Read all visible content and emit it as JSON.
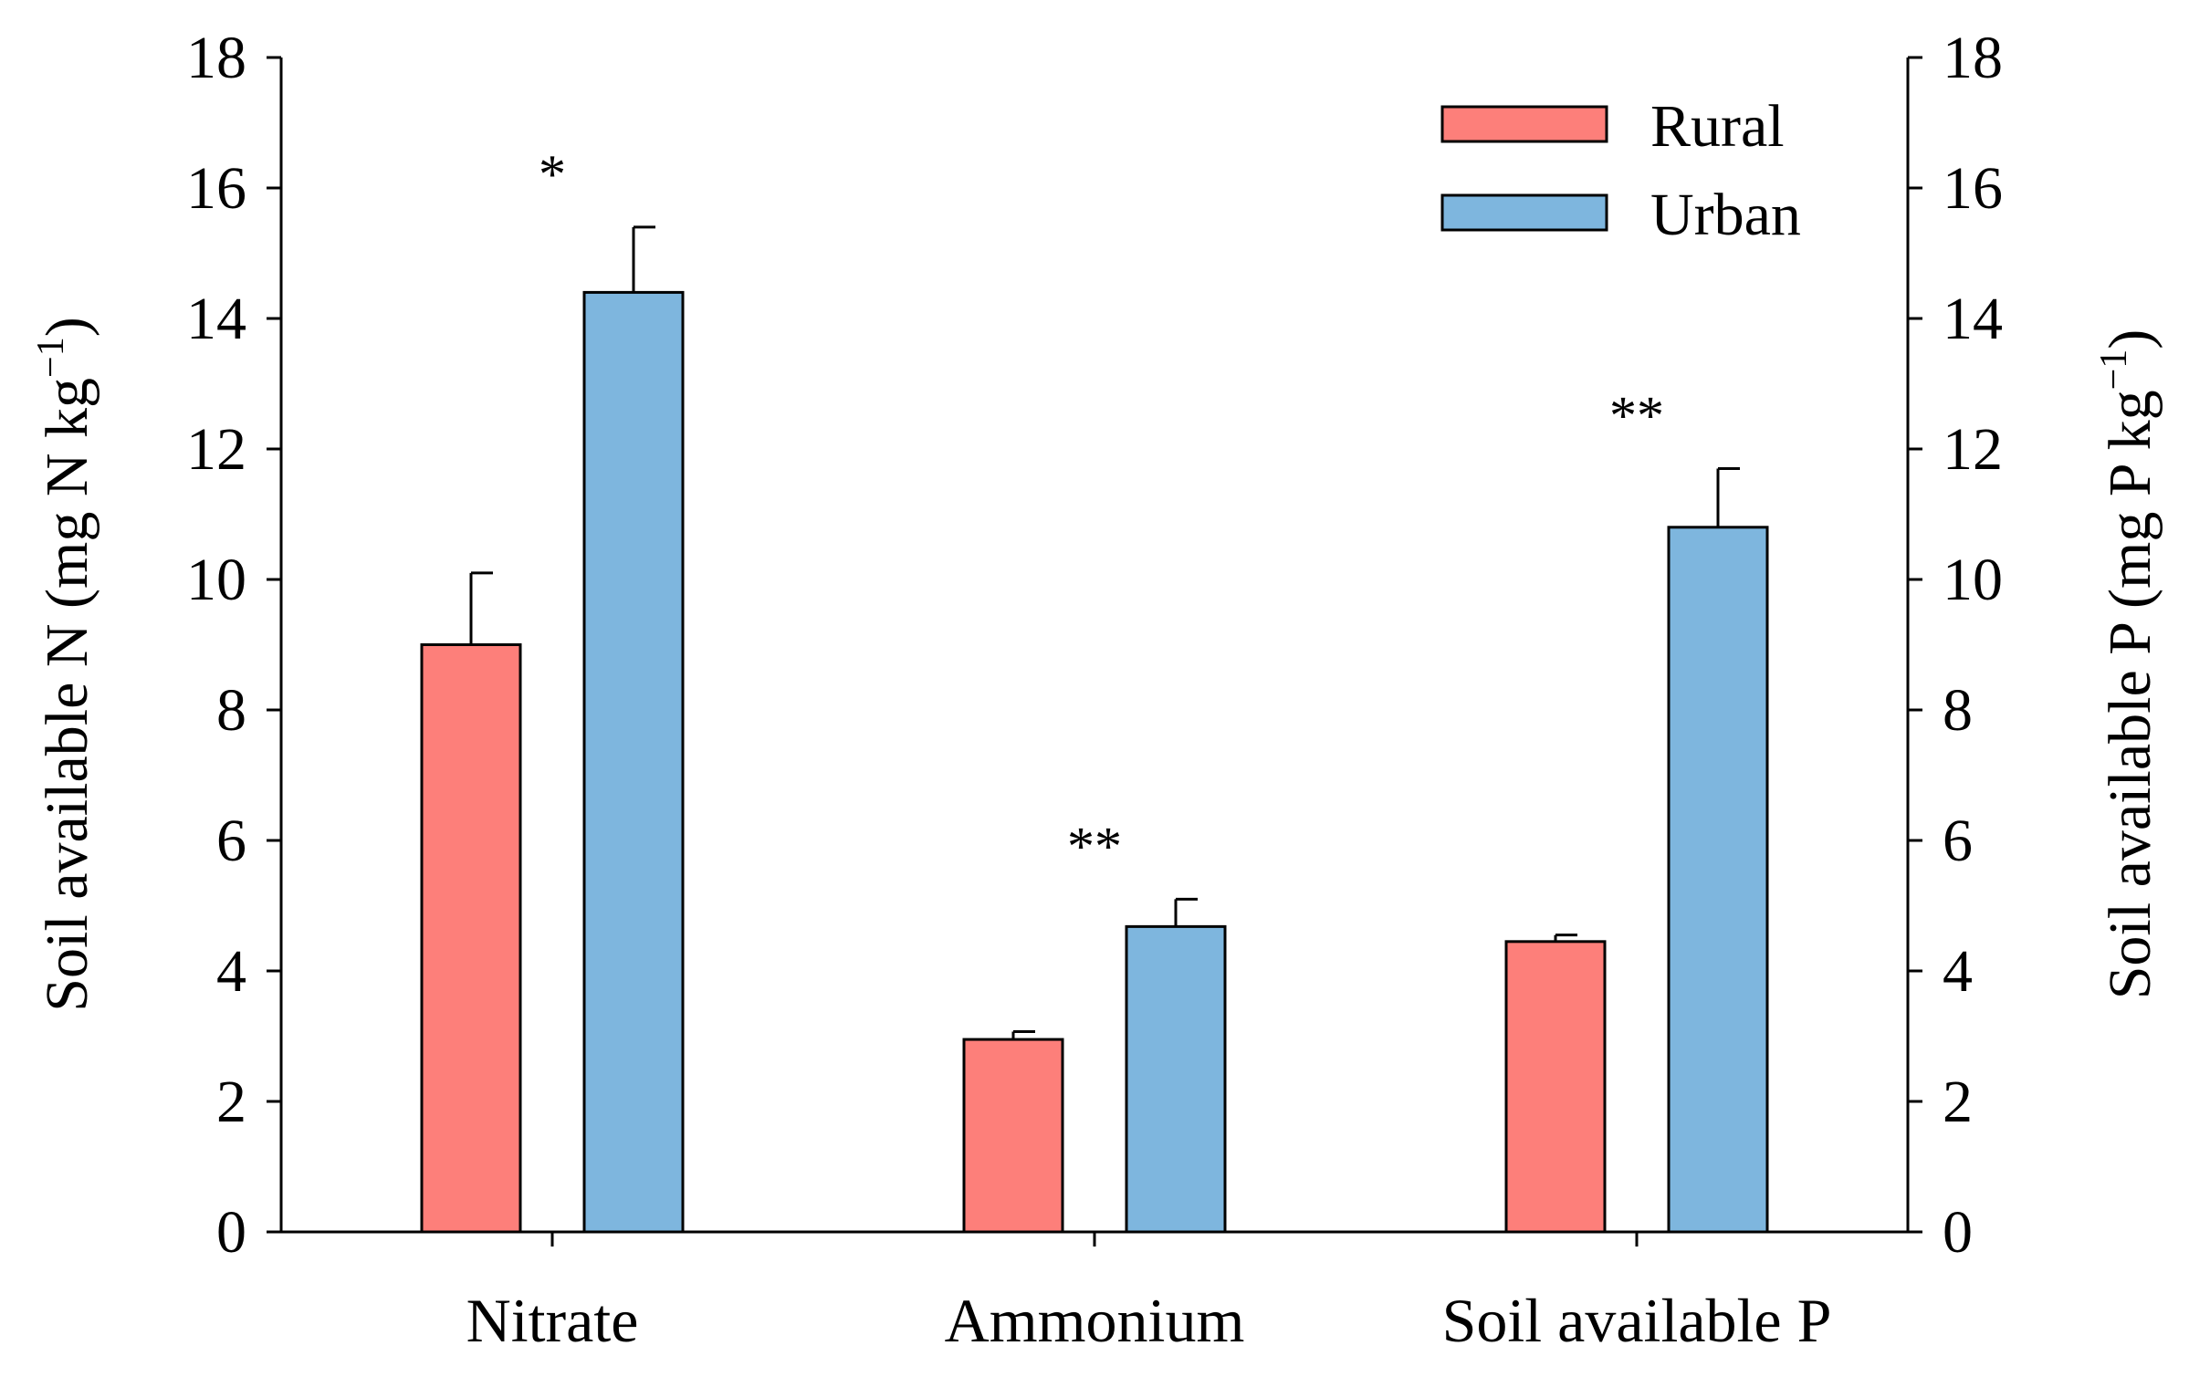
{
  "chart_data": {
    "type": "bar",
    "categories": [
      "Nitrate",
      "Ammonium",
      "Soil available P"
    ],
    "series": [
      {
        "name": "Rural",
        "color": "#fd7f7a",
        "values": [
          9.0,
          2.95,
          4.45
        ],
        "errors": [
          1.1,
          0.12,
          0.1
        ]
      },
      {
        "name": "Urban",
        "color": "#7eb6de",
        "values": [
          14.4,
          4.68,
          10.8
        ],
        "errors": [
          1.0,
          0.42,
          0.9
        ]
      }
    ],
    "significance": [
      "*",
      "**",
      "**"
    ],
    "ylabel_left": {
      "main": "Soil available N (mg N kg",
      "sup": "−1",
      "close": ")"
    },
    "ylabel_right": {
      "main": "Soil available P (mg P kg",
      "sup": "−1",
      "close": ")"
    },
    "ylim": [
      0,
      18
    ],
    "yticks": [
      "0",
      "2",
      "4",
      "6",
      "8",
      "10",
      "12",
      "14",
      "16",
      "18"
    ],
    "legend_position": "top-right",
    "grid": false
  }
}
